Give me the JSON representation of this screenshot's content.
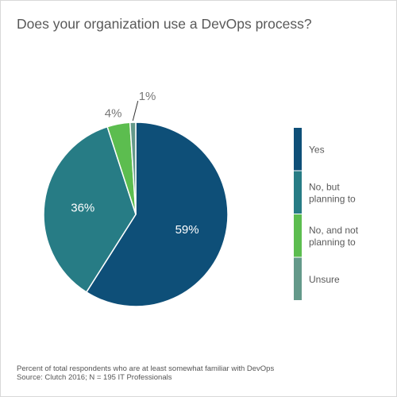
{
  "title": "Does your organization use a DevOps process?",
  "chart_data": {
    "type": "pie",
    "slices": [
      {
        "label": "Yes",
        "legend_lines": [
          "Yes"
        ],
        "value": 59,
        "display": "59%",
        "color": "#0e4f78"
      },
      {
        "label": "No, but planning to",
        "legend_lines": [
          "No, but",
          "planning to"
        ],
        "value": 36,
        "display": "36%",
        "color": "#277c85"
      },
      {
        "label": "No, and not planning to",
        "legend_lines": [
          "No, and not",
          "planning to"
        ],
        "value": 4,
        "display": "4%",
        "color": "#5cbd4f"
      },
      {
        "label": "Unsure",
        "legend_lines": [
          "Unsure"
        ],
        "value": 1,
        "display": "1%",
        "color": "#64998a"
      }
    ],
    "legend_position": "right"
  },
  "footnote": {
    "line1": "Percent of total respondents who are at least somewhat familiar with DevOps",
    "line2": "Source: Clutch 2016; N = 195 IT Professionals"
  }
}
